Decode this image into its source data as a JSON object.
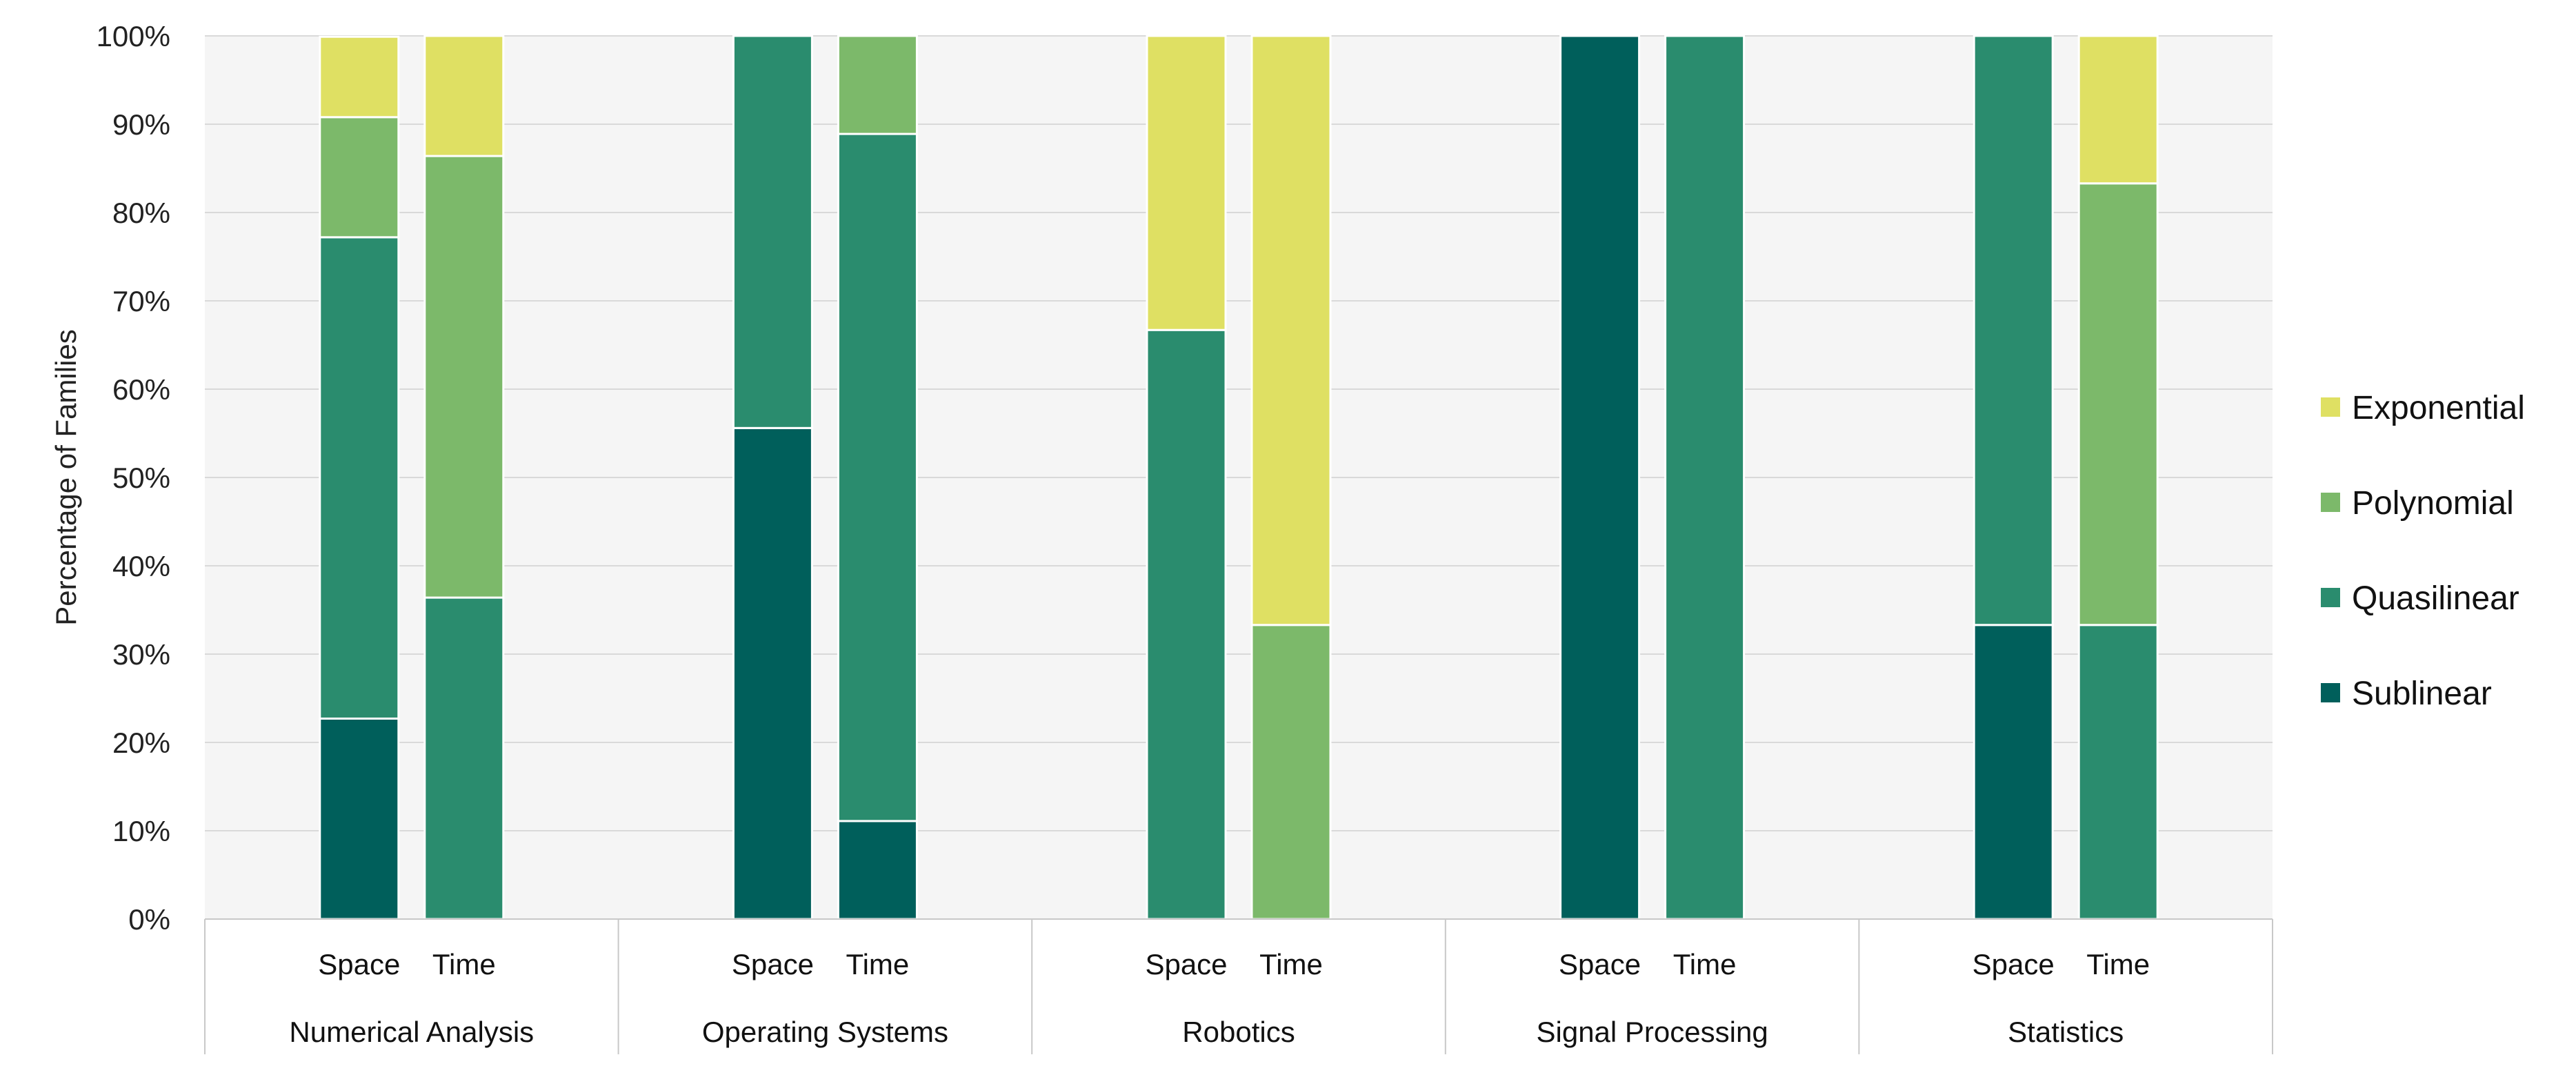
{
  "chart_data": {
    "type": "bar",
    "stacked": true,
    "normalized": true,
    "ylabel": "Percentage of Families",
    "ylim": [
      0,
      100
    ],
    "yticks": [
      "0%",
      "10%",
      "20%",
      "30%",
      "40%",
      "50%",
      "60%",
      "70%",
      "80%",
      "90%",
      "100%"
    ],
    "grid": true,
    "legend_position": "right",
    "groups": [
      "Numerical Analysis",
      "Operating Systems",
      "Robotics",
      "Signal Processing",
      "Statistics"
    ],
    "subcategories": [
      "Space",
      "Time"
    ],
    "series": [
      {
        "name": "Sublinear",
        "color": "#005f5b",
        "values": [
          [
            22.7,
            0.0
          ],
          [
            55.6,
            11.1
          ],
          [
            0.0,
            0.0
          ],
          [
            100.0,
            0.0
          ],
          [
            33.3,
            0.0
          ]
        ]
      },
      {
        "name": "Quasilinear",
        "color": "#2a8c6e",
        "values": [
          [
            54.5,
            36.4
          ],
          [
            44.4,
            77.8
          ],
          [
            66.7,
            0.0
          ],
          [
            0.0,
            100.0
          ],
          [
            66.7,
            33.3
          ]
        ]
      },
      {
        "name": "Polynomial",
        "color": "#7cb96a",
        "values": [
          [
            13.6,
            50.0
          ],
          [
            0.0,
            11.1
          ],
          [
            0.0,
            33.3
          ],
          [
            0.0,
            0.0
          ],
          [
            0.0,
            50.0
          ]
        ]
      },
      {
        "name": "Exponential",
        "color": "#dfe063",
        "values": [
          [
            9.1,
            13.6
          ],
          [
            0.0,
            0.0
          ],
          [
            33.3,
            66.7
          ],
          [
            0.0,
            0.0
          ],
          [
            0.0,
            16.7
          ]
        ]
      }
    ],
    "legend_order": [
      "Exponential",
      "Polynomial",
      "Quasilinear",
      "Sublinear"
    ],
    "plot_background": "#f5f5f5",
    "grid_color": "#d9d9d9"
  }
}
